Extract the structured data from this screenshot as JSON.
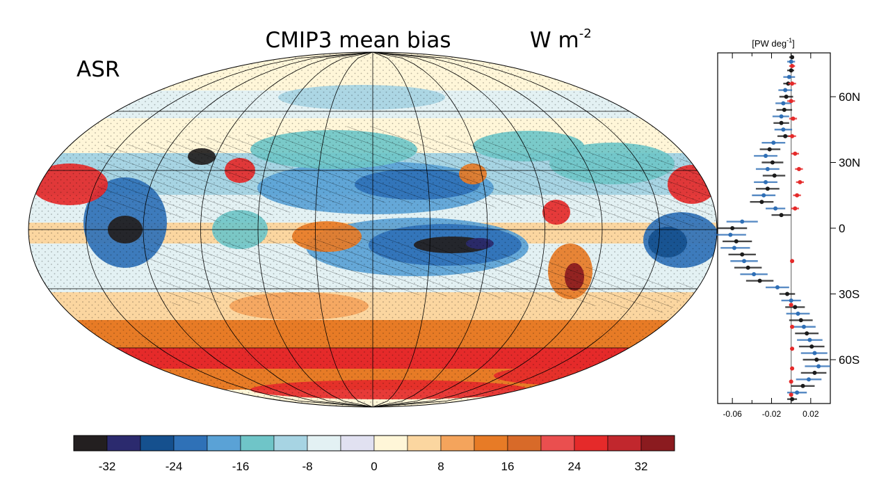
{
  "map": {
    "title": "CMIP3 mean bias",
    "units_base": "W m",
    "units_exp": "-2",
    "panel_label": "ASR"
  },
  "colorbar": {
    "ticks": [
      "-32",
      "-24",
      "-16",
      "-8",
      "0",
      "8",
      "16",
      "24",
      "32"
    ],
    "colors": [
      "#231f20",
      "#2b2a6e",
      "#15508e",
      "#2f71b7",
      "#5aa2d6",
      "#6fc5c8",
      "#a7d4e3",
      "#e3f1f3",
      "#e1e1f1",
      "#fff6d8",
      "#fbd6a0",
      "#f4a45c",
      "#e77b26",
      "#d86a29",
      "#ea4f4f",
      "#e52a2a",
      "#c1272d",
      "#8b1b1f"
    ]
  },
  "chart_data": {
    "type": "scatter",
    "title": "",
    "xlabel_base": "[PW deg",
    "xlabel_exp": "-1",
    "xlabel_close": "]",
    "x_ticks": [
      "-0.06",
      "-0.02",
      "0.02"
    ],
    "x_tick_values": [
      -0.06,
      -0.02,
      0.02
    ],
    "xlim": [
      -0.075,
      0.04
    ],
    "ylim": [
      -80,
      80
    ],
    "y_ticks": [
      "60N",
      "30N",
      "0",
      "30S",
      "60S"
    ],
    "y_tick_values": [
      60,
      30,
      0,
      -30,
      -60
    ],
    "zero_line": 0,
    "series": [
      {
        "color": "#1b1b1b",
        "points": [
          {
            "lat": 78,
            "x": 0.001,
            "lo": -0.002,
            "hi": 0.003
          },
          {
            "lat": 72,
            "x": 0.0,
            "lo": -0.004,
            "hi": 0.003
          },
          {
            "lat": 66,
            "x": -0.003,
            "lo": -0.008,
            "hi": 0.002
          },
          {
            "lat": 60,
            "x": -0.005,
            "lo": -0.012,
            "hi": 0.002
          },
          {
            "lat": 54,
            "x": -0.007,
            "lo": -0.015,
            "hi": 0.001
          },
          {
            "lat": 48,
            "x": -0.01,
            "lo": -0.018,
            "hi": -0.002
          },
          {
            "lat": 42,
            "x": -0.006,
            "lo": -0.014,
            "hi": 0.001
          },
          {
            "lat": 36,
            "x": -0.022,
            "lo": -0.032,
            "hi": -0.011
          },
          {
            "lat": 30,
            "x": -0.019,
            "lo": -0.03,
            "hi": -0.008
          },
          {
            "lat": 24,
            "x": -0.017,
            "lo": -0.029,
            "hi": -0.006
          },
          {
            "lat": 18,
            "x": -0.024,
            "lo": -0.036,
            "hi": -0.012
          },
          {
            "lat": 12,
            "x": -0.03,
            "lo": -0.042,
            "hi": -0.018
          },
          {
            "lat": 6,
            "x": -0.01,
            "lo": -0.02,
            "hi": 0.0
          },
          {
            "lat": 0,
            "x": -0.06,
            "lo": -0.075,
            "hi": -0.045
          },
          {
            "lat": -6,
            "x": -0.056,
            "lo": -0.07,
            "hi": -0.04
          },
          {
            "lat": -12,
            "x": -0.05,
            "lo": -0.064,
            "hi": -0.036
          },
          {
            "lat": -18,
            "x": -0.044,
            "lo": -0.058,
            "hi": -0.03
          },
          {
            "lat": -24,
            "x": -0.032,
            "lo": -0.046,
            "hi": -0.018
          },
          {
            "lat": -30,
            "x": -0.004,
            "lo": -0.012,
            "hi": 0.004
          },
          {
            "lat": -36,
            "x": 0.004,
            "lo": -0.006,
            "hi": 0.014
          },
          {
            "lat": -42,
            "x": 0.01,
            "lo": -0.002,
            "hi": 0.022
          },
          {
            "lat": -48,
            "x": 0.016,
            "lo": 0.004,
            "hi": 0.028
          },
          {
            "lat": -54,
            "x": 0.021,
            "lo": 0.008,
            "hi": 0.034
          },
          {
            "lat": -60,
            "x": 0.026,
            "lo": 0.012,
            "hi": 0.038
          },
          {
            "lat": -66,
            "x": 0.024,
            "lo": 0.01,
            "hi": 0.036
          },
          {
            "lat": -72,
            "x": 0.012,
            "lo": 0.0,
            "hi": 0.024
          },
          {
            "lat": -78,
            "x": 0.001,
            "lo": -0.004,
            "hi": 0.006
          }
        ]
      },
      {
        "color": "#2f6fb6",
        "points": [
          {
            "lat": 76,
            "x": 0.0,
            "lo": -0.004,
            "hi": 0.004
          },
          {
            "lat": 69,
            "x": -0.002,
            "lo": -0.008,
            "hi": 0.004
          },
          {
            "lat": 63,
            "x": -0.006,
            "lo": -0.013,
            "hi": 0.001
          },
          {
            "lat": 57,
            "x": -0.008,
            "lo": -0.016,
            "hi": 0.0
          },
          {
            "lat": 51,
            "x": -0.01,
            "lo": -0.019,
            "hi": -0.002
          },
          {
            "lat": 45,
            "x": -0.008,
            "lo": -0.017,
            "hi": 0.001
          },
          {
            "lat": 39,
            "x": -0.018,
            "lo": -0.03,
            "hi": -0.006
          },
          {
            "lat": 33,
            "x": -0.026,
            "lo": -0.038,
            "hi": -0.014
          },
          {
            "lat": 27,
            "x": -0.024,
            "lo": -0.036,
            "hi": -0.012
          },
          {
            "lat": 21,
            "x": -0.026,
            "lo": -0.038,
            "hi": -0.014
          },
          {
            "lat": 15,
            "x": -0.028,
            "lo": -0.04,
            "hi": -0.016
          },
          {
            "lat": 9,
            "x": -0.016,
            "lo": -0.026,
            "hi": -0.006
          },
          {
            "lat": 3,
            "x": -0.05,
            "lo": -0.066,
            "hi": -0.034
          },
          {
            "lat": -3,
            "x": -0.062,
            "lo": -0.078,
            "hi": -0.046
          },
          {
            "lat": -9,
            "x": -0.058,
            "lo": -0.072,
            "hi": -0.042
          },
          {
            "lat": -15,
            "x": -0.048,
            "lo": -0.062,
            "hi": -0.034
          },
          {
            "lat": -21,
            "x": -0.038,
            "lo": -0.052,
            "hi": -0.024
          },
          {
            "lat": -27,
            "x": -0.014,
            "lo": -0.026,
            "hi": -0.002
          },
          {
            "lat": -33,
            "x": 0.0,
            "lo": -0.01,
            "hi": 0.01
          },
          {
            "lat": -39,
            "x": 0.007,
            "lo": -0.005,
            "hi": 0.019
          },
          {
            "lat": -45,
            "x": 0.013,
            "lo": 0.001,
            "hi": 0.025
          },
          {
            "lat": -51,
            "x": 0.019,
            "lo": 0.006,
            "hi": 0.032
          },
          {
            "lat": -57,
            "x": 0.024,
            "lo": 0.01,
            "hi": 0.037
          },
          {
            "lat": -63,
            "x": 0.028,
            "lo": 0.014,
            "hi": 0.04
          },
          {
            "lat": -69,
            "x": 0.018,
            "lo": 0.005,
            "hi": 0.031
          },
          {
            "lat": -75,
            "x": 0.006,
            "lo": -0.004,
            "hi": 0.016
          }
        ]
      },
      {
        "color": "#e52a2a",
        "points": [
          {
            "lat": 74,
            "x": 0.001,
            "lo": -0.002,
            "hi": 0.004
          },
          {
            "lat": 66,
            "x": 0.001,
            "lo": -0.003,
            "hi": 0.005
          },
          {
            "lat": 58,
            "x": 0.0,
            "lo": -0.004,
            "hi": 0.004
          },
          {
            "lat": 50,
            "x": 0.002,
            "lo": -0.002,
            "hi": 0.006
          },
          {
            "lat": 42,
            "x": 0.001,
            "lo": -0.003,
            "hi": 0.005
          },
          {
            "lat": 34,
            "x": 0.004,
            "lo": 0.0,
            "hi": 0.008
          },
          {
            "lat": 27,
            "x": 0.008,
            "lo": 0.004,
            "hi": 0.012
          },
          {
            "lat": 21,
            "x": 0.009,
            "lo": 0.005,
            "hi": 0.013
          },
          {
            "lat": 15,
            "x": 0.006,
            "lo": 0.002,
            "hi": 0.01
          },
          {
            "lat": 9,
            "x": 0.004,
            "lo": 0.0,
            "hi": 0.008
          },
          {
            "lat": -15,
            "x": 0.001,
            "lo": -0.001,
            "hi": 0.003
          },
          {
            "lat": -35,
            "x": 0.0,
            "lo": -0.002,
            "hi": 0.002
          },
          {
            "lat": -45,
            "x": 0.001,
            "lo": -0.001,
            "hi": 0.003
          },
          {
            "lat": -55,
            "x": 0.001,
            "lo": -0.001,
            "hi": 0.003
          },
          {
            "lat": -64,
            "x": 0.001,
            "lo": -0.001,
            "hi": 0.003
          },
          {
            "lat": -70,
            "x": 0.0,
            "lo": -0.002,
            "hi": 0.002
          },
          {
            "lat": -76,
            "x": 0.0,
            "lo": -0.002,
            "hi": 0.002
          }
        ]
      }
    ]
  }
}
